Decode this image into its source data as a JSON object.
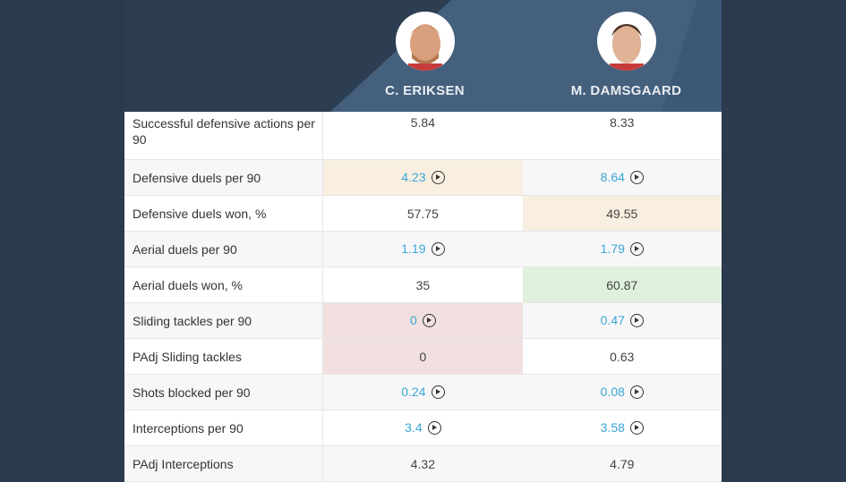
{
  "players": [
    {
      "name": "C. ERIKSEN",
      "avatar": "player-photo"
    },
    {
      "name": "M. DAMSGAARD",
      "avatar": "player-photo"
    }
  ],
  "colors": {
    "link": "#3aa6d8",
    "better": "#dff0dd",
    "neutral": "#f8efe0",
    "worse": "#f2dfdf"
  },
  "rows": [
    {
      "label": "Successful defensive actions per 90",
      "v1": "5.84",
      "v2": "8.33",
      "link": false,
      "h1": "",
      "h2": ""
    },
    {
      "label": "Defensive duels per 90",
      "v1": "4.23",
      "v2": "8.64",
      "link": true,
      "h1": "beige",
      "h2": ""
    },
    {
      "label": "Defensive duels won, %",
      "v1": "57.75",
      "v2": "49.55",
      "link": false,
      "h1": "",
      "h2": "beige"
    },
    {
      "label": "Aerial duels per 90",
      "v1": "1.19",
      "v2": "1.79",
      "link": true,
      "h1": "",
      "h2": ""
    },
    {
      "label": "Aerial duels won, %",
      "v1": "35",
      "v2": "60.87",
      "link": false,
      "h1": "",
      "h2": "green"
    },
    {
      "label": "Sliding tackles per 90",
      "v1": "0",
      "v2": "0.47",
      "link": true,
      "h1": "pink",
      "h2": ""
    },
    {
      "label": "PAdj Sliding tackles",
      "v1": "0",
      "v2": "0.63",
      "link": false,
      "h1": "pink",
      "h2": ""
    },
    {
      "label": "Shots blocked per 90",
      "v1": "0.24",
      "v2": "0.08",
      "link": true,
      "h1": "",
      "h2": ""
    },
    {
      "label": "Interceptions per 90",
      "v1": "3.4",
      "v2": "3.58",
      "link": true,
      "h1": "",
      "h2": ""
    },
    {
      "label": "PAdj Interceptions",
      "v1": "4.32",
      "v2": "4.79",
      "link": false,
      "h1": "",
      "h2": ""
    }
  ]
}
